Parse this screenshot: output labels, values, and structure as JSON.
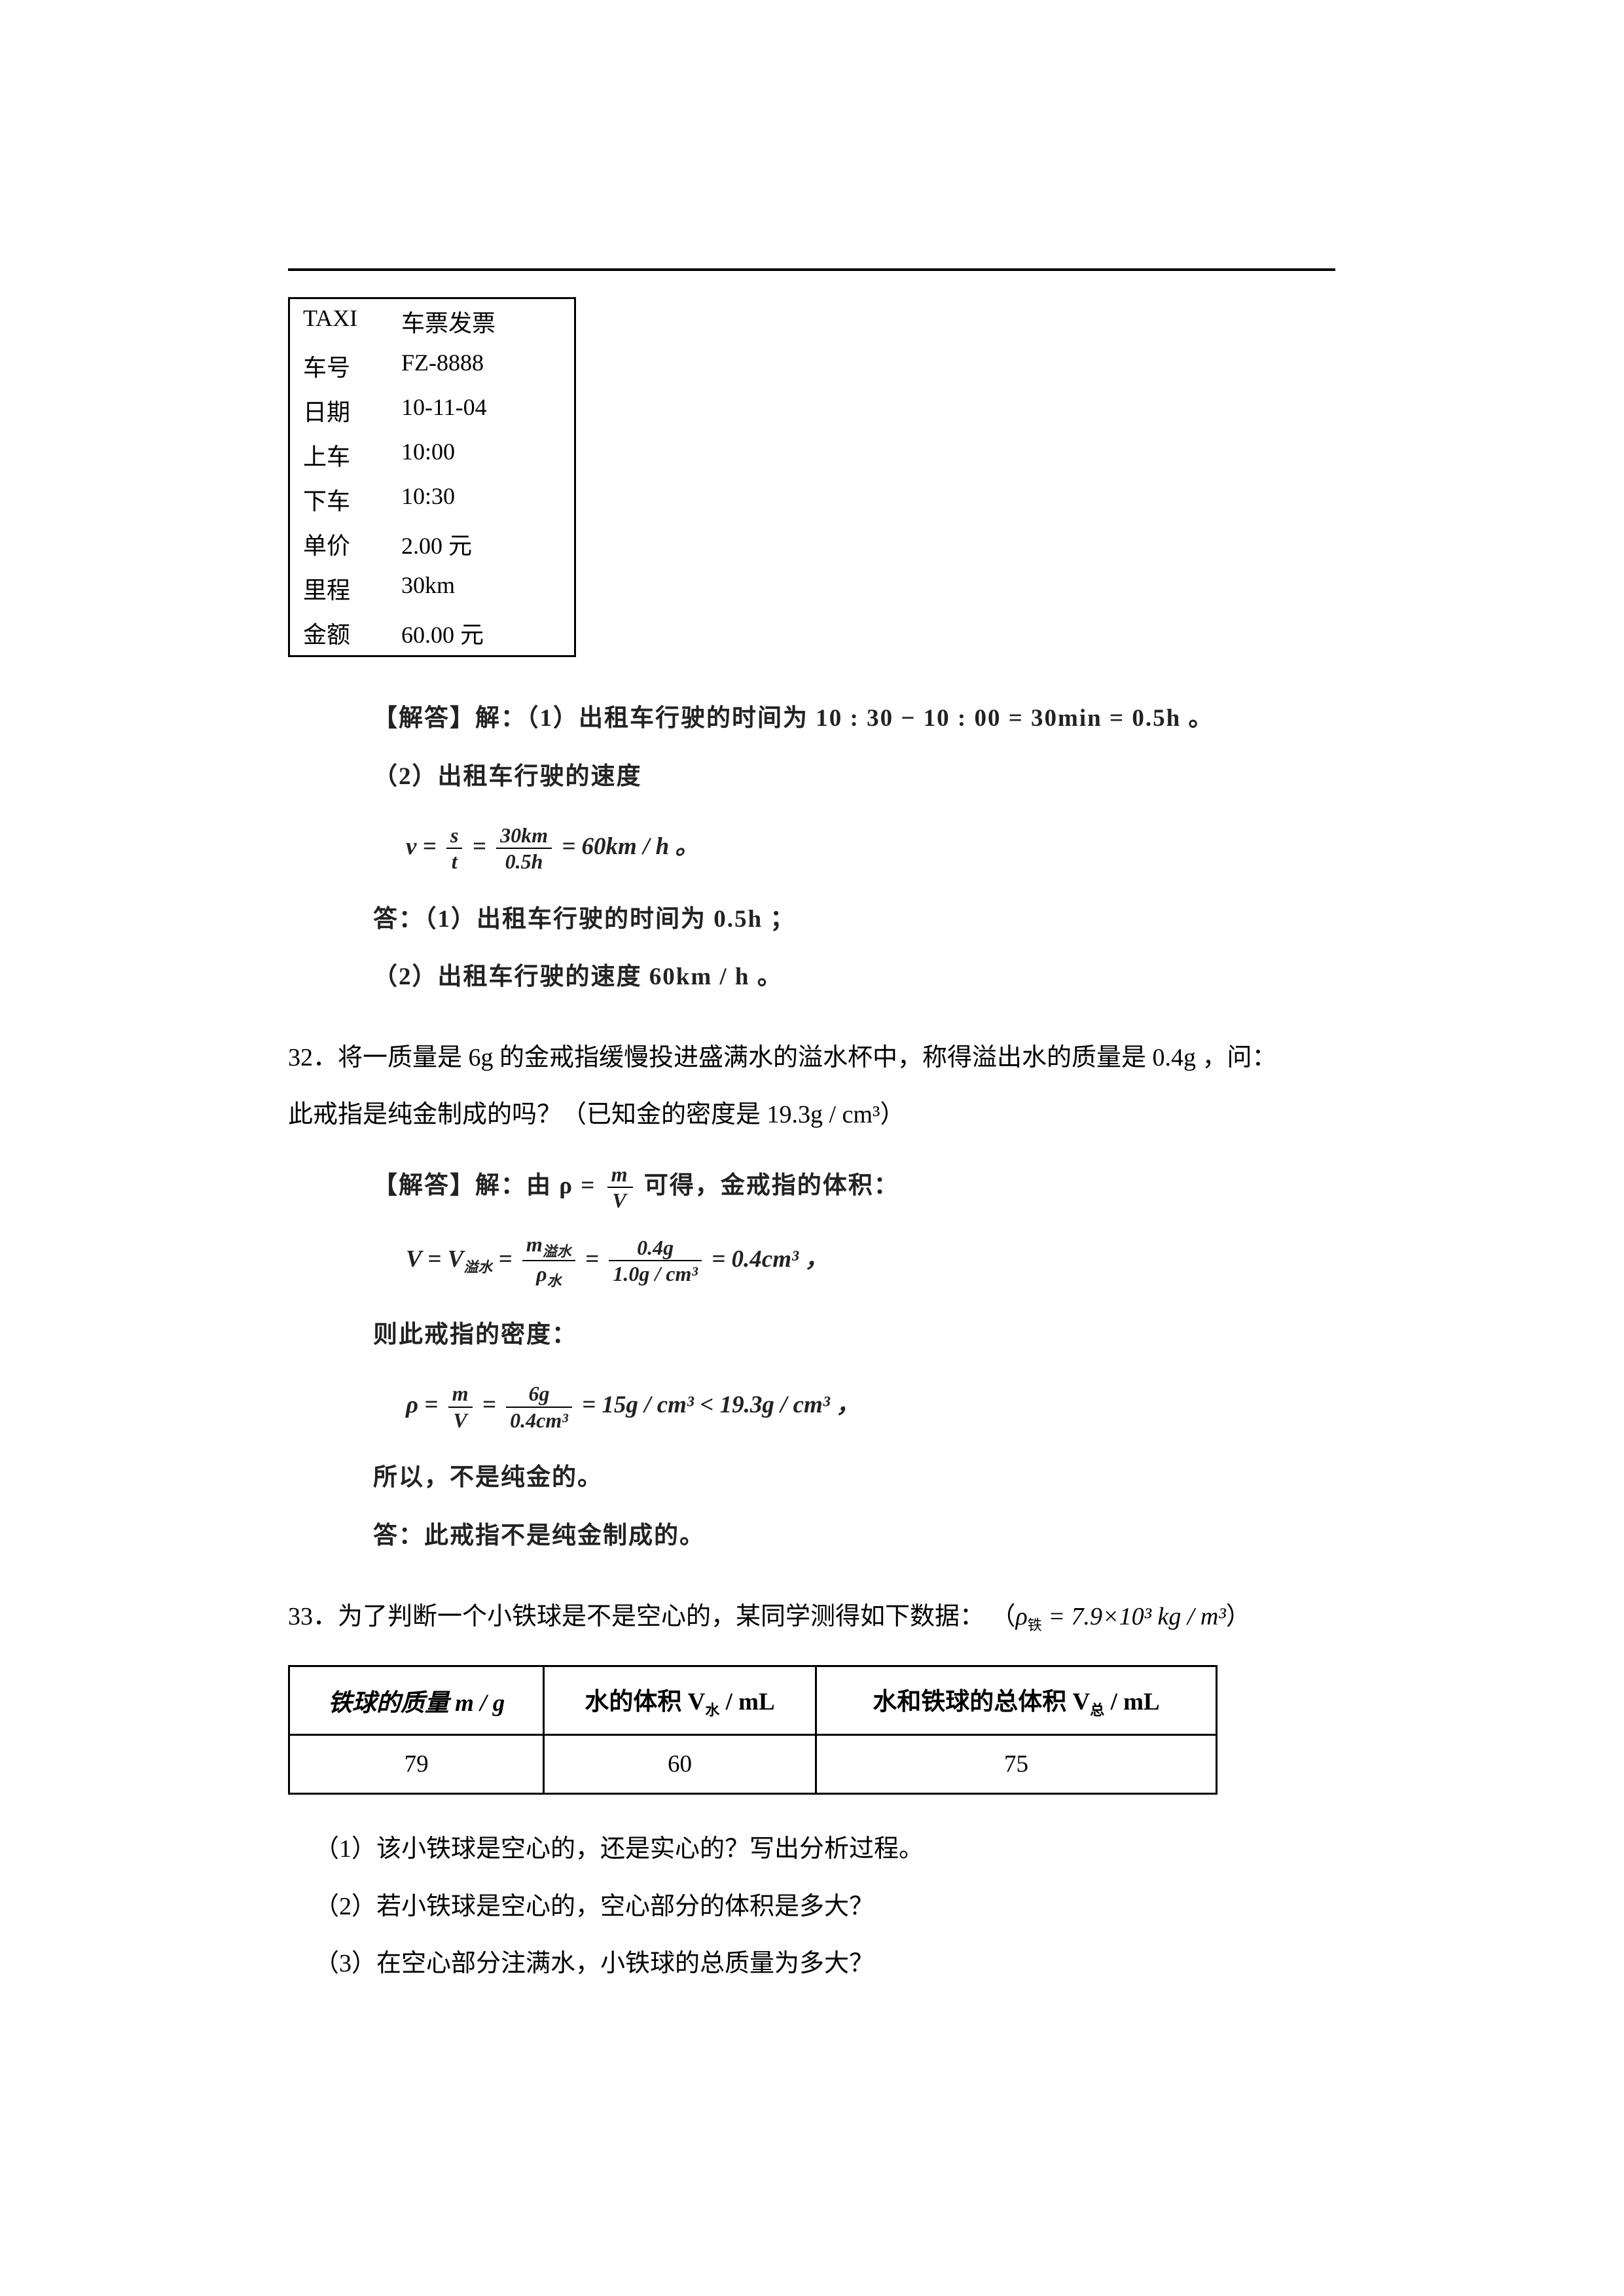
{
  "taxi": {
    "rows": [
      {
        "label": "TAXI",
        "value": "车票发票"
      },
      {
        "label": "车号",
        "value": "FZ-8888"
      },
      {
        "label": "日期",
        "value": "10-11-04"
      },
      {
        "label": "上车",
        "value": "10:00"
      },
      {
        "label": "下车",
        "value": "10:30"
      },
      {
        "label": "单价",
        "value": "2.00 元"
      },
      {
        "label": "里程",
        "value": "30km"
      },
      {
        "label": "金额",
        "value": "60.00 元"
      }
    ]
  },
  "sol31": {
    "line1": "【解答】解：（1）出租车行驶的时间为 10 : 30 − 10 : 00 = 30min = 0.5h 。",
    "line2": "（2）出租车行驶的速度",
    "formula_v": {
      "prefix": "v = ",
      "f1_num": "s",
      "f1_den": "t",
      "eq1": " = ",
      "f2_num": "30km",
      "f2_den": "0.5h",
      "eq2": " = 60km / h 。"
    },
    "ans1": "答：（1）出租车行驶的时间为 0.5h ；",
    "ans2": "（2）出租车行驶的速度 60km / h 。"
  },
  "q32": {
    "num": "32．",
    "line1": "将一质量是 6g 的金戒指缓慢投进盛满水的溢水杯中，称得溢出水的质量是 0.4g ，问：",
    "line2": "此戒指是纯金制成的吗？（已知金的密度是 19.3g / cm³）",
    "sol_intro": "【解答】解：由 ρ = ",
    "sol_intro_num": "m",
    "sol_intro_den": "V",
    "sol_intro_tail": " 可得，金戒指的体积：",
    "formulaV": {
      "lhs": "V = V",
      "lhs_sub": "溢水",
      "eq1": " = ",
      "f1_num": "m",
      "f1_num_sub": "溢水",
      "f1_den": "ρ",
      "f1_den_sub": "水",
      "eq2": " = ",
      "f2_num": "0.4g",
      "f2_den": "1.0g / cm³",
      "tail": " = 0.4cm³ ，"
    },
    "then": "则此戒指的密度：",
    "formulaRho": {
      "lhs": "ρ = ",
      "f1_num": "m",
      "f1_den": "V",
      "eq1": " = ",
      "f2_num": "6g",
      "f2_den": "0.4cm³",
      "tail": " = 15g / cm³ < 19.3g / cm³ ，"
    },
    "so": "所以，不是纯金的。",
    "ans": "答：此戒指不是纯金制成的。"
  },
  "q33": {
    "num": "33．",
    "line1_a": "为了判断一个小铁球是不是空心的，某同学测得如下数据：",
    "rho_label": "ρ",
    "rho_sub": "铁",
    "rho_val": " = 7.9×10³ kg / m³",
    "table": {
      "h1": "铁球的质量 m / g",
      "h2a": "水的体积 V",
      "h2_sub": "水",
      "h2b": " / mL",
      "h3a": "水和铁球的总体积 V",
      "h3_sub": "总",
      "h3b": " / mL",
      "d1": "79",
      "d2": "60",
      "d3": "75"
    },
    "p1": "（1）该小铁球是空心的，还是实心的？写出分析过程。",
    "p2": "（2）若小铁球是空心的，空心部分的体积是多大？",
    "p3": "（3）在空心部分注满水，小铁球的总质量为多大？"
  },
  "style": {
    "text_color": "#000000",
    "font_size_body": 37,
    "font_size_formula": 37,
    "background": "#ffffff",
    "rule_color": "#000000",
    "table_border_color": "#000000"
  }
}
